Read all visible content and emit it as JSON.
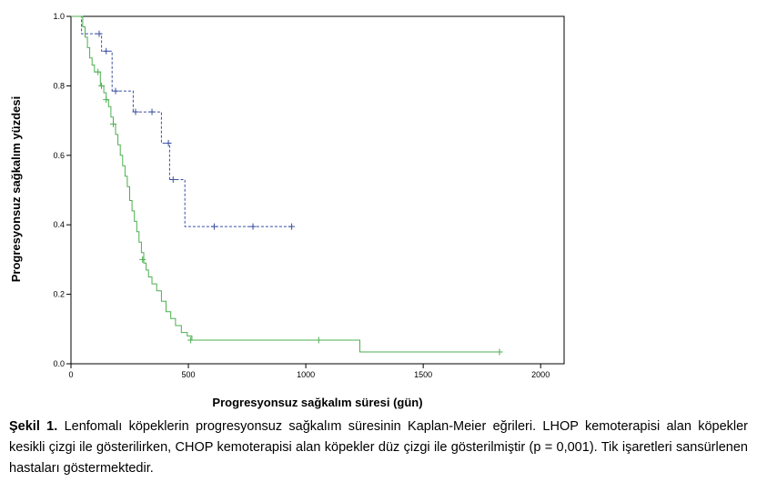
{
  "chart_data": {
    "type": "line",
    "subtype": "kaplan-meier-step",
    "xlabel": "Progresyonsuz sağkalım süresi (gün)",
    "ylabel": "Progresyonsuz sağkalım yüzdesi",
    "xlim": [
      0,
      2100
    ],
    "ylim": [
      0,
      1.0
    ],
    "xticks": [
      0,
      500,
      1000,
      1500,
      2000
    ],
    "yticks": [
      0.0,
      0.2,
      0.4,
      0.6,
      0.8,
      1.0
    ],
    "xtick_labels": [
      "0",
      "500",
      "1000",
      "1500",
      "2000"
    ],
    "ytick_labels": [
      "0.0",
      "0.2",
      "0.4",
      "0.6",
      "0.8",
      "1.0"
    ],
    "grid": false,
    "series": [
      {
        "style": "dashed",
        "color": "#3b4fa0",
        "steps": [
          [
            0,
            1.0
          ],
          [
            45,
            0.95
          ],
          [
            130,
            0.9
          ],
          [
            175,
            0.785
          ],
          [
            265,
            0.725
          ],
          [
            385,
            0.635
          ],
          [
            420,
            0.53
          ],
          [
            485,
            0.395
          ],
          [
            945,
            0.395
          ]
        ],
        "censored": [
          [
            120,
            0.95
          ],
          [
            150,
            0.9
          ],
          [
            190,
            0.785
          ],
          [
            275,
            0.725
          ],
          [
            345,
            0.725
          ],
          [
            415,
            0.635
          ],
          [
            435,
            0.53
          ],
          [
            610,
            0.395
          ],
          [
            775,
            0.395
          ],
          [
            940,
            0.395
          ]
        ]
      },
      {
        "style": "solid",
        "color": "#4caf50",
        "steps": [
          [
            0,
            1.0
          ],
          [
            50,
            0.97
          ],
          [
            60,
            0.94
          ],
          [
            70,
            0.91
          ],
          [
            80,
            0.88
          ],
          [
            90,
            0.86
          ],
          [
            100,
            0.84
          ],
          [
            125,
            0.8
          ],
          [
            140,
            0.78
          ],
          [
            150,
            0.76
          ],
          [
            160,
            0.74
          ],
          [
            170,
            0.71
          ],
          [
            180,
            0.69
          ],
          [
            190,
            0.66
          ],
          [
            200,
            0.63
          ],
          [
            210,
            0.6
          ],
          [
            220,
            0.57
          ],
          [
            230,
            0.54
          ],
          [
            240,
            0.51
          ],
          [
            250,
            0.47
          ],
          [
            260,
            0.44
          ],
          [
            270,
            0.41
          ],
          [
            280,
            0.38
          ],
          [
            290,
            0.35
          ],
          [
            300,
            0.32
          ],
          [
            310,
            0.29
          ],
          [
            320,
            0.27
          ],
          [
            330,
            0.25
          ],
          [
            345,
            0.23
          ],
          [
            365,
            0.21
          ],
          [
            385,
            0.18
          ],
          [
            405,
            0.15
          ],
          [
            425,
            0.13
          ],
          [
            445,
            0.11
          ],
          [
            470,
            0.09
          ],
          [
            495,
            0.08
          ],
          [
            515,
            0.068
          ],
          [
            1230,
            0.034
          ],
          [
            1830,
            0.034
          ]
        ],
        "censored": [
          [
            115,
            0.84
          ],
          [
            130,
            0.8
          ],
          [
            150,
            0.76
          ],
          [
            180,
            0.69
          ],
          [
            305,
            0.3
          ],
          [
            510,
            0.068
          ],
          [
            1055,
            0.068
          ],
          [
            1825,
            0.034
          ]
        ]
      }
    ]
  },
  "caption": {
    "label": "Şekil 1.",
    "text": "Lenfomalı köpeklerin progresyonsuz sağkalım süresinin Kaplan-Meier eğrileri. LHOP kemoterapisi alan köpekler kesikli çizgi ile gösterilirken, CHOP kemoterapisi alan köpekler düz çizgi ile gösterilmiştir (p = 0,001). Tik işaretleri sansürlenen hastaları göstermektedir."
  }
}
